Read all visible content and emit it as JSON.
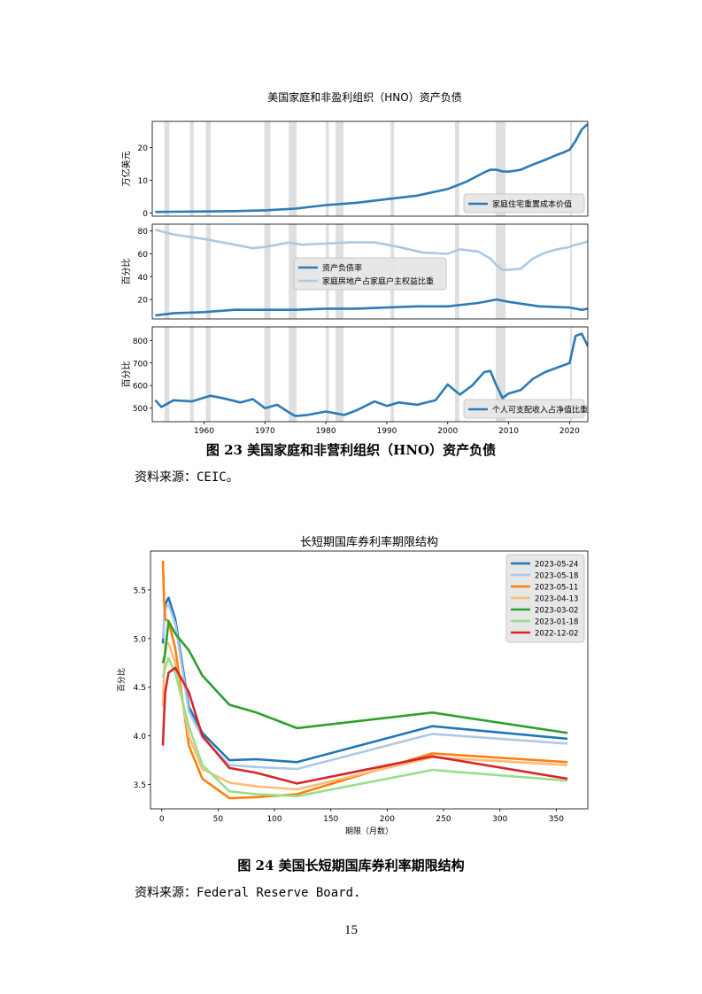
{
  "figure1": {
    "chart_title": "美国家庭和非盈利组织（HNO）资产负债",
    "caption": "图 23   美国家庭和非营利组织（HNO）资产负债",
    "source": "资料来源：CEIC。",
    "chart_data": [
      {
        "type": "line",
        "ylabel": "万亿美元",
        "xlim": [
          1951.5,
          2023
        ],
        "ylim": [
          -1,
          28
        ],
        "yticks": [
          0,
          10,
          20
        ],
        "legend_position": "lower-right",
        "series": [
          {
            "name": "家庭住宅重置成本价值",
            "color": "#2c7bb6",
            "x": [
              1952,
              1955,
              1960,
              1965,
              1970,
              1975,
              1980,
              1985,
              1990,
              1995,
              2000,
              2003,
              2006,
              2007,
              2008,
              2009,
              2010,
              2012,
              2014,
              2016,
              2018,
              2019,
              2020,
              2021,
              2022,
              2023
            ],
            "y": [
              0.3,
              0.35,
              0.45,
              0.55,
              0.8,
              1.3,
              2.4,
              3.1,
              4.2,
              5.3,
              7.3,
              9.5,
              12.4,
              13.2,
              13.2,
              12.7,
              12.6,
              13.2,
              14.8,
              16.2,
              17.8,
              18.5,
              19.3,
              22.0,
              25.5,
              27.2
            ]
          }
        ]
      },
      {
        "type": "line",
        "ylabel": "百分比",
        "xlim": [
          1951.5,
          2023
        ],
        "ylim": [
          3,
          86
        ],
        "yticks": [
          20,
          40,
          60,
          80
        ],
        "legend_position": "center",
        "series": [
          {
            "name": "资产负债率",
            "color": "#2c7bb6",
            "x": [
              1952,
              1955,
              1960,
              1965,
              1970,
              1975,
              1980,
              1985,
              1990,
              1995,
              2000,
              2005,
              2008,
              2009,
              2010,
              2015,
              2020,
              2022,
              2023
            ],
            "y": [
              6,
              8,
              9,
              11,
              11,
              11,
              12,
              12,
              13,
              14,
              14,
              17,
              20,
              19,
              18,
              14,
              13,
              11,
              12
            ]
          },
          {
            "name": "家庭房地产占家庭户主权益比重",
            "color": "#abc9e6",
            "x": [
              1952,
              1955,
              1960,
              1965,
              1968,
              1970,
              1974,
              1976,
              1980,
              1984,
              1988,
              1992,
              1996,
              2000,
              2002,
              2005,
              2007,
              2008,
              2009,
              2010,
              2012,
              2014,
              2016,
              2018,
              2020,
              2021,
              2022,
              2023
            ],
            "y": [
              81,
              77,
              73,
              68,
              65,
              66,
              70,
              68,
              69,
              70,
              70,
              66,
              61,
              60,
              64,
              62,
              56,
              50,
              46,
              46,
              47,
              56,
              61,
              64,
              66,
              68,
              69,
              71
            ]
          }
        ]
      },
      {
        "type": "line",
        "ylabel": "百分比",
        "xtick_labels": [
          "1960",
          "1970",
          "1980",
          "1990",
          "2000",
          "2010",
          "2020"
        ],
        "xticks": [
          1960,
          1970,
          1980,
          1990,
          2000,
          2010,
          2020
        ],
        "xlim": [
          1951.5,
          2023
        ],
        "ylim": [
          440,
          860
        ],
        "yticks": [
          500,
          600,
          700,
          800
        ],
        "legend_position": "lower-right",
        "series": [
          {
            "name": "个人可支配收入占净值比重",
            "color": "#2c7bb6",
            "x": [
              1952,
              1953,
              1955,
              1958,
              1961,
              1963,
              1966,
              1968,
              1970,
              1972,
              1974,
              1975,
              1977,
              1980,
              1983,
              1985,
              1988,
              1990,
              1992,
              1995,
              1998,
              2000,
              2002,
              2004,
              2006,
              2007,
              2008,
              2009,
              2010,
              2012,
              2014,
              2016,
              2018,
              2020,
              2021,
              2022,
              2023
            ],
            "y": [
              535,
              505,
              535,
              530,
              555,
              545,
              525,
              540,
              500,
              515,
              480,
              465,
              470,
              485,
              470,
              490,
              530,
              510,
              525,
              515,
              535,
              605,
              560,
              600,
              660,
              665,
              600,
              545,
              565,
              580,
              630,
              660,
              680,
              700,
              820,
              830,
              775
            ]
          }
        ]
      }
    ]
  },
  "recession_bands": [
    [
      1953.5,
      1954.3
    ],
    [
      1957.7,
      1958.3
    ],
    [
      1960.3,
      1961.1
    ],
    [
      1969.9,
      1970.9
    ],
    [
      1973.9,
      1975.2
    ],
    [
      1980.0,
      1980.5
    ],
    [
      1981.6,
      1982.9
    ],
    [
      1990.6,
      1991.2
    ],
    [
      2001.2,
      2001.9
    ],
    [
      2007.9,
      2009.5
    ],
    [
      2020.1,
      2020.4
    ]
  ],
  "figure2": {
    "chart_title": "长短期国库券利率期限结构",
    "caption": "图 24   美国长短期国库券利率期限结构",
    "source": "资料来源：Federal Reserve Board.",
    "chart_data": {
      "type": "line",
      "title": "长短期国库券利率期限结构",
      "xlabel": "期限（月数）",
      "ylabel": "百分比",
      "xlim": [
        -10,
        378
      ],
      "ylim": [
        3.25,
        5.9
      ],
      "xticks": [
        0,
        50,
        100,
        150,
        200,
        250,
        300,
        350
      ],
      "yticks": [
        3.5,
        4.0,
        4.5,
        5.0,
        5.5
      ],
      "ytick_labels": [
        "3.5",
        "4.0",
        "4.5",
        "5.0",
        "5.5"
      ],
      "legend_position": "top-right",
      "series": [
        {
          "name": "2023-05-24",
          "color": "#1f77b4",
          "x": [
            1,
            3,
            6,
            12,
            24,
            36,
            60,
            84,
            120,
            240,
            360
          ],
          "y": [
            4.95,
            5.35,
            5.42,
            5.2,
            4.3,
            4.03,
            3.75,
            3.76,
            3.73,
            4.1,
            3.97
          ]
        },
        {
          "name": "2023-05-18",
          "color": "#aec7e8",
          "x": [
            1,
            3,
            6,
            12,
            24,
            36,
            60,
            84,
            120,
            240,
            360
          ],
          "y": [
            5.0,
            5.3,
            5.35,
            5.15,
            4.25,
            3.98,
            3.7,
            3.68,
            3.66,
            4.02,
            3.92
          ]
        },
        {
          "name": "2023-05-11",
          "color": "#ff7f0e",
          "x": [
            1,
            2,
            3,
            6,
            12,
            24,
            36,
            60,
            84,
            120,
            240,
            360
          ],
          "y": [
            5.8,
            5.4,
            5.2,
            5.18,
            4.9,
            3.9,
            3.56,
            3.36,
            3.37,
            3.4,
            3.82,
            3.73
          ]
        },
        {
          "name": "2023-04-13",
          "color": "#ffbb78",
          "x": [
            1,
            3,
            6,
            12,
            24,
            36,
            60,
            84,
            120,
            240,
            360
          ],
          "y": [
            4.3,
            4.95,
            4.95,
            4.75,
            4.0,
            3.66,
            3.52,
            3.48,
            3.45,
            3.78,
            3.7
          ]
        },
        {
          "name": "2023-03-02",
          "color": "#2ca02c",
          "x": [
            1,
            3,
            6,
            12,
            24,
            36,
            60,
            84,
            120,
            240,
            360
          ],
          "y": [
            4.75,
            4.85,
            5.18,
            5.05,
            4.88,
            4.62,
            4.32,
            4.24,
            4.08,
            4.24,
            4.03
          ]
        },
        {
          "name": "2023-01-18",
          "color": "#98df8a",
          "x": [
            1,
            3,
            6,
            12,
            24,
            36,
            60,
            84,
            120,
            240,
            360
          ],
          "y": [
            4.6,
            4.7,
            4.8,
            4.65,
            4.1,
            3.7,
            3.43,
            3.4,
            3.38,
            3.65,
            3.54
          ]
        },
        {
          "name": "2022-12-02",
          "color": "#d62728",
          "x": [
            1,
            2,
            3,
            6,
            12,
            24,
            36,
            60,
            84,
            120,
            240,
            360
          ],
          "y": [
            3.9,
            4.2,
            4.45,
            4.65,
            4.7,
            4.45,
            4.0,
            3.67,
            3.62,
            3.51,
            3.79,
            3.56
          ]
        }
      ]
    }
  },
  "page_number": "15"
}
